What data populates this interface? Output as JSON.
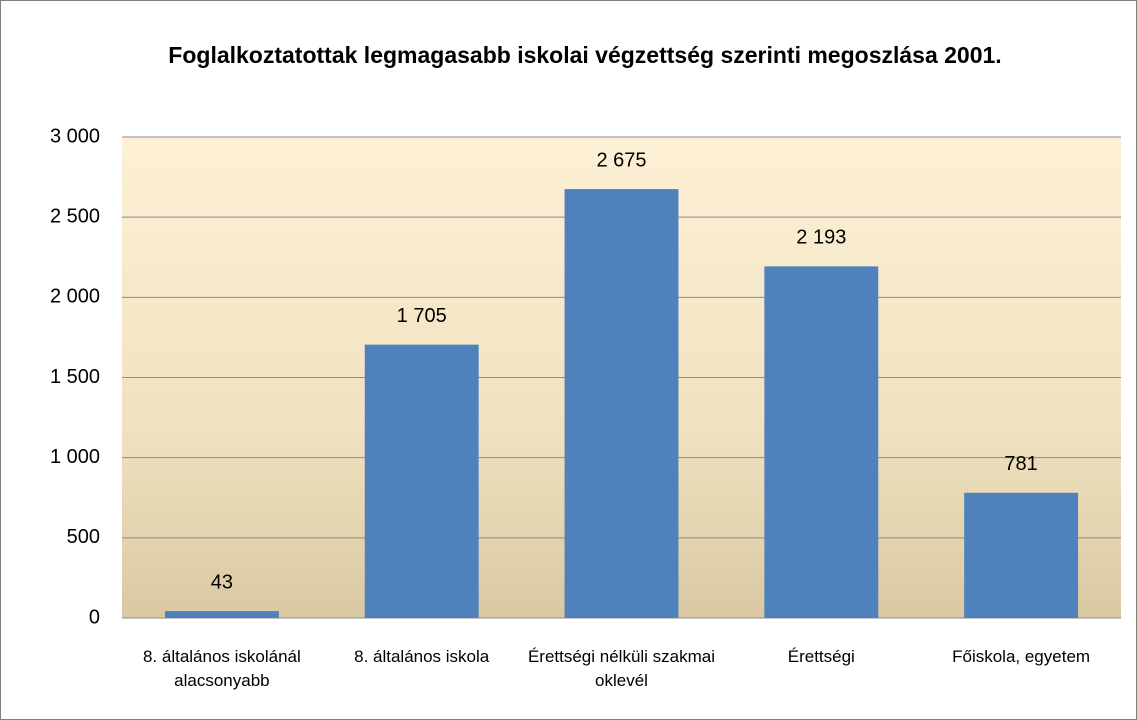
{
  "chart_data": {
    "type": "bar",
    "title": "Foglalkoztatottak legmagasabb iskolai végzettség szerinti megoszlása 2001.",
    "categories": [
      "8. általános iskolánál alacsonyabb",
      "8. általános iskola",
      "Érettségi nélküli szakmai oklevél",
      "Érettségi",
      "Főiskola, egyetem"
    ],
    "values": [
      43,
      1705,
      2675,
      2193,
      781
    ],
    "value_labels": [
      "43",
      "1 705",
      "2 675",
      "2 193",
      "781"
    ],
    "color": "#4f81bd",
    "ylim": [
      0,
      3000
    ],
    "yticks": [
      0,
      500,
      {
        "value": 1000,
        "label": "1 000"
      },
      {
        "value": 1500,
        "label": "1 500"
      },
      {
        "value": 2000,
        "label": "2 000"
      },
      {
        "value": 2500,
        "label": "2 500"
      },
      {
        "value": 3000,
        "label": "3 000"
      }
    ],
    "grid": true
  }
}
